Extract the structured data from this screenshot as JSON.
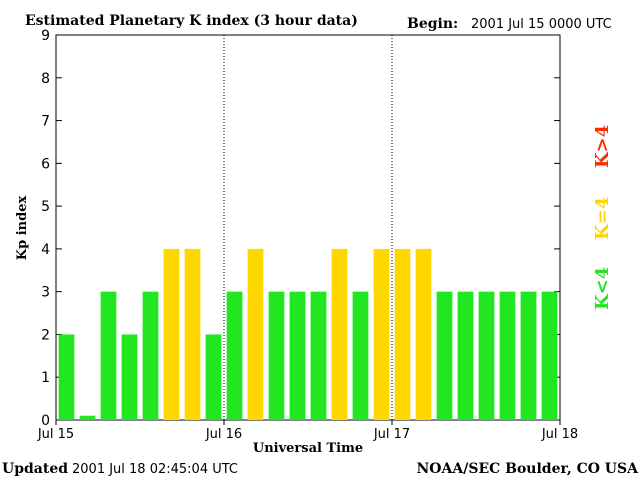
{
  "header": {
    "title": "Estimated Planetary K index (3 hour data)",
    "begin_label": "Begin:",
    "begin_value": "2001 Jul 15 0000 UTC"
  },
  "footer": {
    "updated_label": "Updated",
    "updated_value": "2001 Jul 18 02:45:04 UTC",
    "credit": "NOAA/SEC Boulder, CO USA"
  },
  "legend": [
    {
      "label": "K<4",
      "color": "#22e622"
    },
    {
      "label": "K=4",
      "color": "#ffd700"
    },
    {
      "label": "K>4",
      "color": "#ff2a00"
    }
  ],
  "chart_data": {
    "type": "bar",
    "title": "Estimated Planetary K index (3 hour data)",
    "xlabel": "Universal Time",
    "ylabel": "Kp index",
    "ylim": [
      0,
      9
    ],
    "yticks": [
      "0",
      "1",
      "2",
      "3",
      "4",
      "5",
      "6",
      "7",
      "8",
      "9"
    ],
    "xtick_labels": [
      "Jul 15",
      "Jul 16",
      "Jul 17",
      "Jul 18"
    ],
    "day_dividers": [
      "Jul 16",
      "Jul 17"
    ],
    "values": [
      2,
      0.1,
      3,
      2,
      3,
      4,
      4,
      2,
      3,
      4,
      3,
      3,
      3,
      4,
      3,
      4,
      4,
      4,
      3,
      3,
      3,
      3,
      3,
      3
    ],
    "colors": {
      "low": "#22e622",
      "equal": "#ffd700",
      "high": "#ff2a00"
    }
  }
}
